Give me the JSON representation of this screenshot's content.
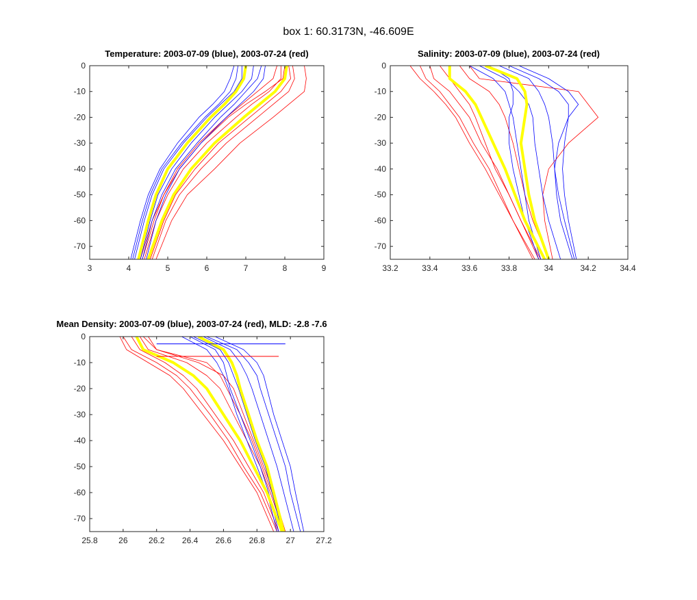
{
  "figure_title": "box 1: 60.3173N, -46.609E",
  "chart_data": [
    {
      "type": "line",
      "title": "Temperature: 2003-07-09 (blue), 2003-07-24 (red)",
      "xlim": [
        3,
        9
      ],
      "ylim": [
        -75,
        0
      ],
      "xticks": [
        3,
        4,
        5,
        6,
        7,
        8,
        9
      ],
      "yticks": [
        0,
        -10,
        -20,
        -30,
        -40,
        -50,
        -60,
        -70
      ],
      "depth": [
        0,
        -5,
        -10,
        -15,
        -20,
        -30,
        -40,
        -50,
        -60,
        -75
      ],
      "blue_profiles": [
        [
          7.4,
          7.3,
          7.0,
          6.7,
          6.35,
          5.75,
          5.2,
          4.85,
          4.6,
          4.35
        ],
        [
          6.8,
          6.75,
          6.6,
          6.3,
          5.95,
          5.35,
          4.85,
          4.55,
          4.35,
          4.1
        ],
        [
          7.2,
          7.15,
          6.9,
          6.55,
          6.2,
          5.6,
          5.1,
          4.75,
          4.55,
          4.3
        ],
        [
          6.9,
          6.9,
          6.7,
          6.35,
          6.0,
          5.4,
          4.9,
          4.6,
          4.4,
          4.15
        ],
        [
          7.5,
          7.45,
          7.2,
          6.85,
          6.5,
          5.85,
          5.3,
          4.95,
          4.7,
          4.45
        ],
        [
          6.7,
          6.6,
          6.45,
          6.15,
          5.8,
          5.25,
          4.8,
          4.5,
          4.3,
          4.05
        ]
      ],
      "red_profiles": [
        [
          8.2,
          8.25,
          8.1,
          7.7,
          7.3,
          6.5,
          5.85,
          5.3,
          4.95,
          4.6
        ],
        [
          7.9,
          7.9,
          7.6,
          7.15,
          6.75,
          6.0,
          5.4,
          5.0,
          4.7,
          4.4
        ],
        [
          8.5,
          8.55,
          8.5,
          8.1,
          7.7,
          6.85,
          6.2,
          5.5,
          5.1,
          4.7
        ],
        [
          8.0,
          7.95,
          7.5,
          7.0,
          6.55,
          5.85,
          5.3,
          4.9,
          4.65,
          4.35
        ],
        [
          8.1,
          8.15,
          7.9,
          7.5,
          7.1,
          6.3,
          5.7,
          5.2,
          4.9,
          4.55
        ],
        [
          7.8,
          7.7,
          7.3,
          6.9,
          6.5,
          5.8,
          5.25,
          4.9,
          4.6,
          4.3
        ]
      ],
      "blue_mean": [
        7.0,
        6.95,
        6.75,
        6.45,
        6.1,
        5.5,
        5.0,
        4.7,
        4.5,
        4.25
      ],
      "red_mean": [
        8.05,
        8.0,
        7.75,
        7.35,
        6.95,
        6.2,
        5.6,
        5.15,
        4.85,
        4.5
      ]
    },
    {
      "type": "line",
      "title": "Salinity: 2003-07-09 (blue), 2003-07-24 (red)",
      "xlim": [
        33.2,
        34.4
      ],
      "ylim": [
        -75,
        0
      ],
      "xticks": [
        33.2,
        33.4,
        33.6,
        33.8,
        34,
        34.2,
        34.4
      ],
      "yticks": [
        0,
        -10,
        -20,
        -30,
        -40,
        -50,
        -60,
        -70
      ],
      "depth": [
        0,
        -5,
        -10,
        -15,
        -20,
        -30,
        -40,
        -50,
        -60,
        -75
      ],
      "blue_profiles": [
        [
          33.75,
          33.9,
          33.95,
          33.98,
          34.0,
          34.02,
          34.03,
          34.04,
          34.06,
          34.12
        ],
        [
          33.7,
          33.8,
          33.82,
          33.82,
          33.8,
          33.8,
          33.82,
          33.85,
          33.88,
          33.95
        ],
        [
          33.8,
          33.95,
          34.05,
          34.1,
          34.1,
          34.08,
          34.07,
          34.08,
          34.1,
          34.14
        ],
        [
          33.6,
          33.72,
          33.78,
          33.8,
          33.82,
          33.84,
          33.86,
          33.88,
          33.9,
          33.96
        ],
        [
          33.85,
          34.0,
          34.1,
          34.15,
          34.1,
          34.05,
          34.03,
          34.05,
          34.08,
          34.13
        ],
        [
          33.65,
          33.78,
          33.85,
          33.9,
          33.92,
          33.93,
          33.95,
          33.97,
          34.0,
          34.06
        ]
      ],
      "red_profiles": [
        [
          33.35,
          33.38,
          33.45,
          33.5,
          33.55,
          33.62,
          33.7,
          33.76,
          33.82,
          33.93
        ],
        [
          33.45,
          33.5,
          33.55,
          33.6,
          33.63,
          33.68,
          33.73,
          33.8,
          33.86,
          33.96
        ],
        [
          33.6,
          33.65,
          34.15,
          34.2,
          34.25,
          34.1,
          34.0,
          33.97,
          33.98,
          34.02
        ],
        [
          33.4,
          33.42,
          33.5,
          33.55,
          33.6,
          33.66,
          33.74,
          33.8,
          33.86,
          33.95
        ],
        [
          33.55,
          33.6,
          33.7,
          33.75,
          33.78,
          33.82,
          33.85,
          33.88,
          33.92,
          34.0
        ],
        [
          33.3,
          33.35,
          33.42,
          33.48,
          33.53,
          33.6,
          33.68,
          33.75,
          33.82,
          33.92
        ]
      ],
      "blue_mean": [
        33.68,
        33.84,
        33.88,
        33.89,
        33.88,
        33.86,
        33.88,
        33.9,
        33.93,
        34.0
      ],
      "red_mean": [
        33.5,
        33.5,
        33.58,
        33.63,
        33.66,
        33.72,
        33.78,
        33.83,
        33.88,
        33.98
      ]
    },
    {
      "type": "line",
      "title": "Mean Density: 2003-07-09 (blue), 2003-07-24 (red), MLD: -2.8 -7.6",
      "xlim": [
        25.8,
        27.2
      ],
      "ylim": [
        -75,
        0
      ],
      "xticks": [
        25.8,
        26,
        26.2,
        26.4,
        26.6,
        26.8,
        27,
        27.2
      ],
      "yticks": [
        0,
        -10,
        -20,
        -30,
        -40,
        -50,
        -60,
        -70
      ],
      "depth": [
        0,
        -5,
        -10,
        -15,
        -20,
        -30,
        -40,
        -50,
        -60,
        -75
      ],
      "blue_profiles": [
        [
          26.5,
          26.68,
          26.75,
          26.8,
          26.82,
          26.87,
          26.92,
          26.97,
          27.0,
          27.06
        ],
        [
          26.4,
          26.55,
          26.6,
          26.62,
          26.64,
          26.7,
          26.76,
          26.82,
          26.87,
          26.93
        ],
        [
          26.55,
          26.72,
          26.8,
          26.84,
          26.86,
          26.9,
          26.95,
          27.0,
          27.03,
          27.08
        ],
        [
          26.35,
          26.5,
          26.56,
          26.6,
          26.63,
          26.68,
          26.74,
          26.8,
          26.86,
          26.92
        ],
        [
          26.48,
          26.64,
          26.7,
          26.74,
          26.77,
          26.82,
          26.87,
          26.92,
          26.96,
          27.02
        ],
        [
          26.42,
          26.58,
          26.63,
          26.66,
          26.69,
          26.74,
          26.79,
          26.85,
          26.89,
          26.95
        ]
      ],
      "red_profiles": [
        [
          26.0,
          26.05,
          26.2,
          26.32,
          26.4,
          26.52,
          26.63,
          26.72,
          26.82,
          26.92
        ],
        [
          26.1,
          26.15,
          26.38,
          26.5,
          26.58,
          26.66,
          26.74,
          26.82,
          26.88,
          26.96
        ],
        [
          26.05,
          26.1,
          26.25,
          26.36,
          26.44,
          26.55,
          26.66,
          26.75,
          26.84,
          26.93
        ],
        [
          26.15,
          26.2,
          26.45,
          26.6,
          26.66,
          26.72,
          26.78,
          26.84,
          26.9,
          26.97
        ],
        [
          25.98,
          26.02,
          26.15,
          26.28,
          26.36,
          26.48,
          26.6,
          26.7,
          26.8,
          26.9
        ],
        [
          26.12,
          26.2,
          26.5,
          26.58,
          26.62,
          26.7,
          26.77,
          26.83,
          26.89,
          26.96
        ]
      ],
      "blue_mean": [
        26.45,
        26.6,
        26.65,
        26.68,
        26.7,
        26.75,
        26.8,
        26.86,
        26.9,
        26.96
      ],
      "red_mean": [
        26.08,
        26.12,
        26.3,
        26.42,
        26.5,
        26.6,
        26.7,
        26.78,
        26.86,
        26.95
      ],
      "mld_lines": [
        {
          "depth": -2.8,
          "x_range": [
            26.2,
            26.97
          ],
          "color": "#0000ff"
        },
        {
          "depth": -7.6,
          "x_range": [
            26.2,
            26.93
          ],
          "color": "#ff0000"
        }
      ]
    }
  ],
  "colors": {
    "blue": "#0000ff",
    "red": "#ff0000",
    "mean": "#ffff00",
    "axis": "#262626"
  }
}
